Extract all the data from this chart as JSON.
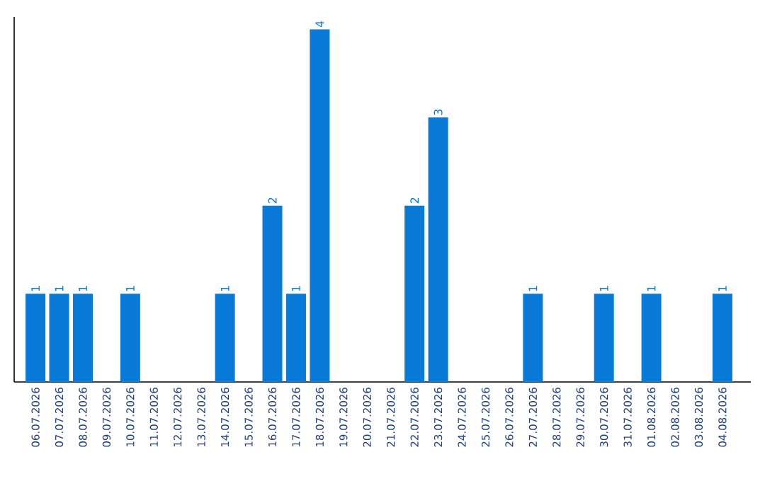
{
  "chart_data": {
    "type": "bar",
    "categories": [
      "06.07.2026",
      "07.07.2026",
      "08.07.2026",
      "09.07.2026",
      "10.07.2026",
      "11.07.2026",
      "12.07.2026",
      "13.07.2026",
      "14.07.2026",
      "15.07.2026",
      "16.07.2026",
      "17.07.2026",
      "18.07.2026",
      "19.07.2026",
      "20.07.2026",
      "21.07.2026",
      "22.07.2026",
      "23.07.2026",
      "24.07.2026",
      "25.07.2026",
      "26.07.2026",
      "27.07.2026",
      "28.07.2026",
      "29.07.2026",
      "30.07.2026",
      "31.07.2026",
      "01.08.2026",
      "02.08.2026",
      "03.08.2026",
      "04.08.2026"
    ],
    "values": [
      1,
      1,
      1,
      0,
      1,
      0,
      0,
      0,
      1,
      0,
      2,
      1,
      4,
      0,
      0,
      0,
      2,
      3,
      0,
      0,
      0,
      1,
      0,
      0,
      1,
      0,
      1,
      0,
      0,
      1
    ],
    "value_labels": [
      "1",
      "1",
      "1",
      null,
      "1",
      null,
      null,
      null,
      "1",
      null,
      "2",
      "1",
      "4",
      null,
      null,
      null,
      "2",
      "3",
      null,
      null,
      null,
      "1",
      null,
      null,
      "1",
      null,
      "1",
      null,
      null,
      "1"
    ],
    "color": "#0a7ad8",
    "tick_labels": "x"
  }
}
